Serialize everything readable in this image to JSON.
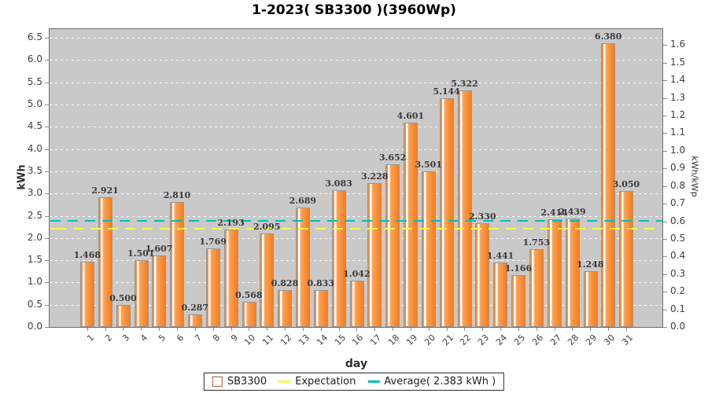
{
  "title": "1-2023( SB3300 )(3960Wp)",
  "chart_data": {
    "type": "bar",
    "title": "1-2023( SB3300 )(3960Wp)",
    "xlabel": "day",
    "ylabel_left": "kWh",
    "ylabel_right": "kWh/kWp",
    "categories": [
      1,
      2,
      3,
      4,
      5,
      6,
      7,
      8,
      9,
      10,
      11,
      12,
      13,
      14,
      15,
      16,
      17,
      18,
      19,
      20,
      21,
      22,
      23,
      24,
      25,
      26,
      27,
      28,
      29,
      30,
      31
    ],
    "values": [
      1.468,
      2.921,
      0.5,
      1.501,
      1.607,
      2.81,
      0.287,
      1.769,
      2.193,
      0.568,
      2.095,
      0.828,
      2.689,
      0.833,
      3.083,
      1.042,
      3.228,
      3.652,
      4.601,
      3.501,
      5.144,
      5.322,
      2.33,
      1.441,
      1.166,
      1.753,
      2.414,
      2.439,
      1.248,
      6.38,
      3.05
    ],
    "series_name": "SB3300",
    "ylim_left": [
      0.0,
      6.5
    ],
    "ytick_step_left": 0.5,
    "ylim_right": [
      0.0,
      1.6
    ],
    "ytick_step_right": 0.1,
    "kwp": 3.96,
    "expectation_kwh": 2.21,
    "average_kwh": 2.383,
    "grid": "horizontal white dashed",
    "legend_position": "bottom"
  },
  "legend": {
    "series_label": "SB3300",
    "expectation_label": "Expectation",
    "average_label": "Average( 2.383 kWh )"
  },
  "colors": {
    "bar_main": "#F5822A",
    "bar_highlight": "#FFFFFF",
    "expectation_line": "#F8F84E",
    "average_line": "#00BDBD",
    "plot_background": "#C9C9C9",
    "gridline": "#FFFFFF",
    "label_text": "#3A3A3A"
  }
}
